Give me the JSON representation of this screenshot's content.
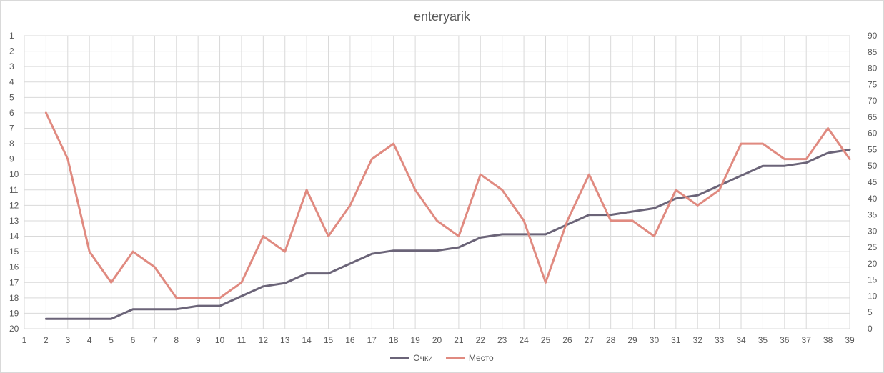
{
  "chart_data": {
    "type": "line",
    "title": "enteryarik",
    "x": [
      1,
      2,
      3,
      4,
      5,
      6,
      7,
      8,
      9,
      10,
      11,
      12,
      13,
      14,
      15,
      16,
      17,
      18,
      19,
      20,
      21,
      22,
      23,
      24,
      25,
      26,
      27,
      28,
      29,
      30,
      31,
      32,
      33,
      34,
      35,
      36,
      37,
      38,
      39
    ],
    "x_ticks": [
      "1",
      "2",
      "3",
      "4",
      "5",
      "6",
      "7",
      "8",
      "9",
      "10",
      "11",
      "12",
      "13",
      "14",
      "15",
      "16",
      "17",
      "18",
      "19",
      "20",
      "21",
      "22",
      "23",
      "24",
      "25",
      "26",
      "27",
      "28",
      "29",
      "30",
      "31",
      "32",
      "33",
      "34",
      "35",
      "36",
      "37",
      "38",
      "39"
    ],
    "y_left_ticks": [
      "1",
      "2",
      "3",
      "4",
      "5",
      "6",
      "7",
      "8",
      "9",
      "10",
      "11",
      "12",
      "13",
      "14",
      "15",
      "16",
      "17",
      "18",
      "19",
      "20"
    ],
    "y_left_range": [
      1,
      20
    ],
    "y_left_inverted": true,
    "y_right_ticks": [
      "0",
      "5",
      "10",
      "15",
      "20",
      "25",
      "30",
      "35",
      "40",
      "45",
      "50",
      "55",
      "60",
      "65",
      "70",
      "75",
      "80",
      "85",
      "90"
    ],
    "y_right_range": [
      0,
      90
    ],
    "grid": true,
    "legend_position": "bottom",
    "series": [
      {
        "name": "Очки",
        "axis": "right",
        "color": "#6b6478",
        "x": [
          2,
          3,
          4,
          5,
          6,
          7,
          8,
          9,
          10,
          11,
          12,
          13,
          14,
          15,
          16,
          17,
          18,
          19,
          20,
          21,
          22,
          23,
          24,
          25,
          26,
          27,
          28,
          29,
          30,
          31,
          32,
          33,
          34,
          35,
          36,
          37,
          38,
          39
        ],
        "values": [
          3,
          3,
          3,
          3,
          6,
          6,
          6,
          7,
          7,
          10,
          13,
          14,
          17,
          17,
          20,
          23,
          24,
          24,
          24,
          25,
          28,
          29,
          29,
          29,
          32,
          35,
          35,
          36,
          37,
          40,
          41,
          44,
          47,
          50,
          50,
          51,
          54,
          55
        ]
      },
      {
        "name": "Место",
        "axis": "left",
        "color": "#e08a80",
        "x": [
          2,
          3,
          4,
          5,
          6,
          7,
          8,
          9,
          10,
          11,
          12,
          13,
          14,
          15,
          16,
          17,
          18,
          19,
          20,
          21,
          22,
          23,
          24,
          25,
          26,
          27,
          28,
          29,
          30,
          31,
          32,
          33,
          34,
          35,
          36,
          37,
          38,
          39
        ],
        "values": [
          6,
          9,
          15,
          17,
          15,
          16,
          18,
          18,
          18,
          17,
          14,
          15,
          11,
          14,
          12,
          9,
          8,
          11,
          13,
          14,
          10,
          11,
          13,
          17,
          13,
          10,
          13,
          13,
          14,
          11,
          12,
          11,
          8,
          8,
          9,
          9,
          7,
          9
        ]
      }
    ]
  }
}
